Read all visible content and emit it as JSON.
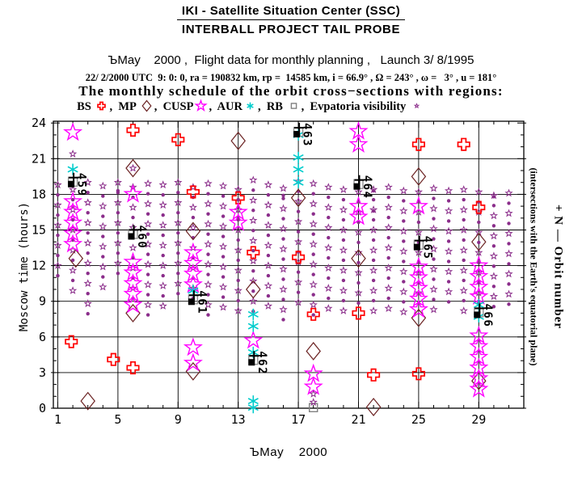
{
  "header": {
    "title1": "IKI - Satellite Situation Center (SSC)",
    "title2": "INTERBALL PROJECT TAIL PROBE",
    "flight_line": "ЪMay    2000 ,  Flight data for monthly planning ,   Launch 3/ 8/1995",
    "elements_line": "22/ 2/2000 UTC  9: 0: 0, ra = 190832 km, rp =  14585 km, i = 66.9° , Ω = 243° , ω =   3° , u = 181°",
    "schedule_line": "The monthly schedule of the orbit cross−sections with regions:"
  },
  "legend": {
    "items": [
      {
        "label": "BS ",
        "marker": "cross",
        "color": "#ff0000"
      },
      {
        "label": "MP ",
        "marker": "diamond",
        "color": "#6b2222"
      },
      {
        "label": "CUSP",
        "marker": "star",
        "color": "#ff00ff"
      },
      {
        "label": "AUR",
        "marker": "asterisk",
        "color": "#00cccc"
      },
      {
        "label": "RB ",
        "marker": "square",
        "color": "#808080"
      },
      {
        "label": "Evpatoria visibility ",
        "marker": "evpatoria",
        "color": "#8b2e8b"
      }
    ],
    "separator": ",  "
  },
  "right_labels": {
    "outer": "+ N — Orbit number",
    "inner": "(intersections with the Earth's equatorial plane)"
  },
  "chart_data": {
    "type": "scatter",
    "title": "The monthly schedule of the orbit cross−sections with regions",
    "xlabel": "ЪMay    2000",
    "ylabel": "Moscow time (hours)",
    "x_range_days": [
      1,
      31
    ],
    "y_range_hours": [
      0,
      24
    ],
    "x_ticks": [
      1,
      5,
      9,
      13,
      17,
      21,
      25,
      29
    ],
    "y_ticks": [
      0,
      3,
      6,
      9,
      12,
      15,
      18,
      21,
      24
    ],
    "grid": "on",
    "series": [
      {
        "name": "BS",
        "marker": "cross",
        "color": "#ff0000",
        "points": [
          [
            1.9,
            5.6
          ],
          [
            4.7,
            4.1
          ],
          [
            6,
            3.4
          ],
          [
            6,
            23.4
          ],
          [
            9,
            22.6
          ],
          [
            10,
            18.2
          ],
          [
            13,
            17.7
          ],
          [
            14,
            13.1
          ],
          [
            17,
            12.7
          ],
          [
            18,
            7.9
          ],
          [
            21,
            8.0
          ],
          [
            22,
            2.8
          ],
          [
            25,
            2.9
          ],
          [
            25,
            22.2
          ],
          [
            28,
            22.2
          ],
          [
            29,
            16.9
          ]
        ]
      },
      {
        "name": "MP",
        "marker": "diamond",
        "color": "#6b2222",
        "points": [
          [
            2.2,
            12.6
          ],
          [
            3,
            0.6
          ],
          [
            6,
            20.2
          ],
          [
            6,
            8.0
          ],
          [
            10,
            14.9
          ],
          [
            10,
            3.1
          ],
          [
            13,
            22.5
          ],
          [
            14,
            10.0
          ],
          [
            17,
            17.7
          ],
          [
            18,
            4.8
          ],
          [
            21,
            12.6
          ],
          [
            22,
            0.1
          ],
          [
            25,
            19.5
          ],
          [
            25,
            7.6
          ],
          [
            29,
            14.0
          ],
          [
            29,
            2.3
          ]
        ]
      },
      {
        "name": "CUSP",
        "marker": "star",
        "color": "#ff00ff",
        "points": [
          [
            2,
            23.2
          ],
          [
            2,
            17.4
          ],
          [
            2,
            16.5
          ],
          [
            2,
            15.6
          ],
          [
            2,
            14.7
          ],
          [
            2,
            13.8
          ],
          [
            6,
            18.0
          ],
          [
            6,
            12.3
          ],
          [
            6,
            11.4
          ],
          [
            6,
            10.5
          ],
          [
            6,
            9.6
          ],
          [
            6,
            8.7
          ],
          [
            10,
            13.1
          ],
          [
            10,
            12.2
          ],
          [
            10,
            11.3
          ],
          [
            10,
            10.4
          ],
          [
            10,
            5.1
          ],
          [
            10,
            3.8
          ],
          [
            13,
            16.5
          ],
          [
            13,
            15.6
          ],
          [
            14,
            5.7
          ],
          [
            18,
            2.9
          ],
          [
            18,
            1.8
          ],
          [
            21,
            23.3
          ],
          [
            21,
            22.2
          ],
          [
            21,
            17.0
          ],
          [
            21,
            16.1
          ],
          [
            25,
            17.0
          ],
          [
            25,
            11.9
          ],
          [
            25,
            11.0
          ],
          [
            25,
            10.1
          ],
          [
            25,
            9.2
          ],
          [
            25,
            8.3
          ],
          [
            29,
            12.0
          ],
          [
            29,
            11.1
          ],
          [
            29,
            10.2
          ],
          [
            29,
            9.4
          ],
          [
            29,
            6.1
          ],
          [
            29,
            5.2
          ],
          [
            29,
            4.3
          ],
          [
            29,
            3.4
          ],
          [
            29,
            2.5
          ],
          [
            29,
            1.6
          ]
        ]
      },
      {
        "name": "AUR",
        "marker": "asterisk",
        "color": "#00cccc",
        "points": [
          [
            2,
            20.1
          ],
          [
            10,
            9.9
          ],
          [
            14,
            7.9
          ],
          [
            14,
            6.9
          ],
          [
            14,
            4.7
          ],
          [
            14,
            0.6
          ],
          [
            14,
            0.05
          ],
          [
            17,
            23.0
          ],
          [
            17,
            21.1
          ],
          [
            17,
            20.1
          ],
          [
            17,
            19.0
          ],
          [
            29,
            8.7
          ],
          [
            29,
            7.7
          ]
        ]
      },
      {
        "name": "RB",
        "marker": "square",
        "color": "#808080",
        "points": [
          [
            18,
            0.05
          ]
        ]
      },
      {
        "name": "Evpatoria",
        "marker": "evpatoria",
        "color": "#8b2e8b",
        "points": [
          [
            2,
            21.4,
            0
          ],
          [
            6,
            20.2,
            0
          ],
          [
            5,
            18.3,
            1
          ],
          [
            16,
            17.9,
            1
          ],
          [
            22,
            18.3,
            1
          ],
          [
            22,
            16.6,
            1
          ],
          [
            30,
            17.8,
            1
          ],
          [
            18,
            1.2,
            0
          ],
          [
            18,
            0.5,
            0
          ]
        ]
      }
    ],
    "evpatoria_columns": {
      "marker": "evpatoria",
      "color": "#8b2e8b",
      "step": 0.85,
      "columns": [
        {
          "day": 1,
          "from": 18.8,
          "to": 10.6
        },
        {
          "day": 2,
          "from": 18.4,
          "to": 9.8
        },
        {
          "day": 3,
          "from": 19.0,
          "to": 7.6
        },
        {
          "day": 4,
          "from": 18.7,
          "to": 9.6
        },
        {
          "day": 5,
          "from": 19.0,
          "to": 10.7
        },
        {
          "day": 6,
          "from": 18.6,
          "to": 8.5
        },
        {
          "day": 7,
          "from": 18.9,
          "to": 7.6
        },
        {
          "day": 8,
          "from": 18.8,
          "to": 8.4
        },
        {
          "day": 9,
          "from": 19.0,
          "to": 9.2
        },
        {
          "day": 10,
          "from": 18.6,
          "to": 9.0
        },
        {
          "day": 11,
          "from": 18.9,
          "to": 7.4
        },
        {
          "day": 12,
          "from": 18.7,
          "to": 8.2
        },
        {
          "day": 13,
          "from": 18.4,
          "to": 8.0
        },
        {
          "day": 14,
          "from": 19.2,
          "to": 8.0
        },
        {
          "day": 15,
          "from": 18.8,
          "to": 7.9
        },
        {
          "day": 16,
          "from": 18.5,
          "to": 7.1
        },
        {
          "day": 17,
          "from": 19.1,
          "to": 8.3
        },
        {
          "day": 18,
          "from": 18.9,
          "to": 7.8
        },
        {
          "day": 19,
          "from": 18.6,
          "to": 8.1
        },
        {
          "day": 20,
          "from": 18.4,
          "to": 7.6
        },
        {
          "day": 21,
          "from": 18.2,
          "to": 8.2
        },
        {
          "day": 22,
          "from": 18.4,
          "to": 8.0
        },
        {
          "day": 23,
          "from": 18.6,
          "to": 8.3
        },
        {
          "day": 24,
          "from": 18.3,
          "to": 7.7
        },
        {
          "day": 25,
          "from": 18.2,
          "to": 8.5
        },
        {
          "day": 26,
          "from": 18.5,
          "to": 8.1
        },
        {
          "day": 27,
          "from": 18.3,
          "to": 8.2
        },
        {
          "day": 28,
          "from": 18.4,
          "to": 8.0
        },
        {
          "day": 29,
          "from": 18.2,
          "to": 8.3
        },
        {
          "day": 30,
          "from": 17.9,
          "to": 8.1
        },
        {
          "day": 31,
          "from": 18.1,
          "to": 8.4
        }
      ]
    },
    "orbit_annotations": [
      {
        "n": "459",
        "day": 2,
        "hour": 19.2
      },
      {
        "n": "460",
        "day": 6,
        "hour": 14.8
      },
      {
        "n": "461",
        "day": 10,
        "hour": 9.3
      },
      {
        "n": "462",
        "day": 14,
        "hour": 4.2
      },
      {
        "n": "463",
        "day": 17,
        "hour": 23.4
      },
      {
        "n": "464",
        "day": 21,
        "hour": 19.0
      },
      {
        "n": "465",
        "day": 25,
        "hour": 13.9
      },
      {
        "n": "466",
        "day": 29,
        "hour": 8.2
      }
    ],
    "colors": {
      "axis": "#000000",
      "grid": "#000000",
      "annotation": "#000000",
      "rb_open_square": "#8a8a8a"
    }
  }
}
